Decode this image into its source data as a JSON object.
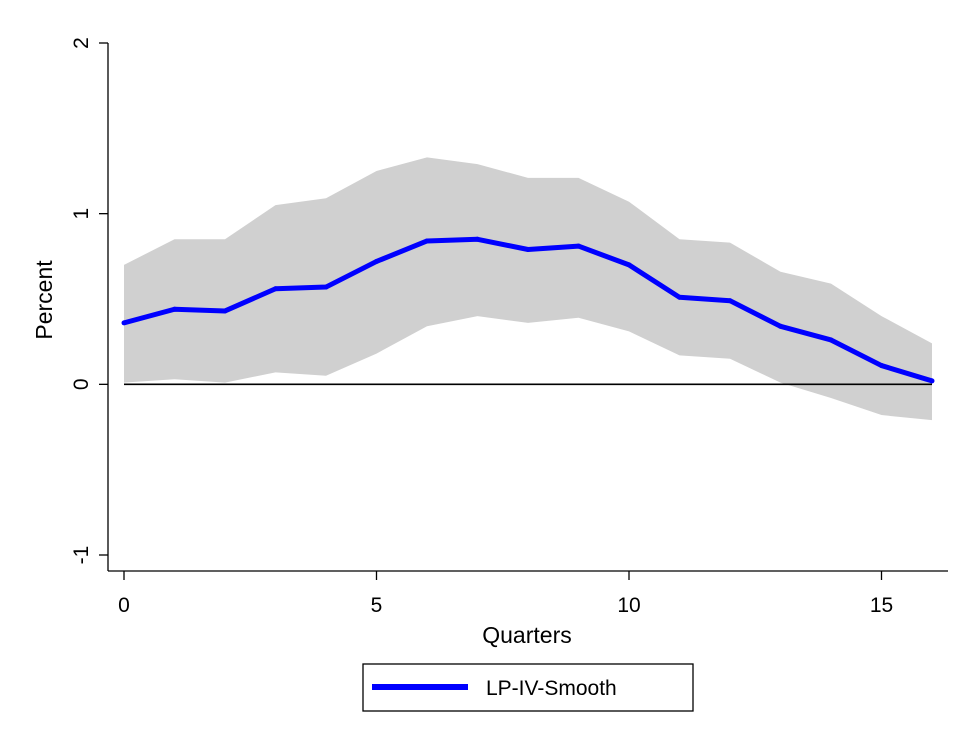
{
  "chart_data": {
    "type": "line",
    "title": "",
    "xlabel": "Quarters",
    "ylabel": "Percent",
    "xlim": [
      0,
      16
    ],
    "ylim": [
      -1,
      2
    ],
    "x_ticks": [
      0,
      5,
      10,
      15
    ],
    "y_ticks": [
      -1,
      0,
      1,
      2
    ],
    "x_tick_labels": [
      "0",
      "5",
      "10",
      "15"
    ],
    "y_tick_labels": [
      "-1",
      "0",
      "1",
      "2"
    ],
    "grid": false,
    "zero_line": 0,
    "legend": {
      "placement": "bottom-center",
      "entries": [
        "LP-IV-Smooth"
      ]
    },
    "x": [
      0,
      1,
      2,
      3,
      4,
      5,
      6,
      7,
      8,
      9,
      10,
      11,
      12,
      13,
      14,
      15,
      16
    ],
    "series": [
      {
        "name": "LP-IV-Smooth",
        "color": "#0000ff",
        "values": [
          0.36,
          0.44,
          0.43,
          0.56,
          0.57,
          0.72,
          0.84,
          0.85,
          0.79,
          0.81,
          0.7,
          0.51,
          0.49,
          0.34,
          0.26,
          0.11,
          0.02
        ]
      }
    ],
    "band": {
      "color": "#d0d0d0",
      "lower": [
        0.01,
        0.03,
        0.01,
        0.07,
        0.05,
        0.18,
        0.34,
        0.4,
        0.36,
        0.39,
        0.31,
        0.17,
        0.15,
        0.01,
        -0.08,
        -0.18,
        -0.21
      ],
      "upper": [
        0.7,
        0.85,
        0.85,
        1.05,
        1.09,
        1.25,
        1.33,
        1.29,
        1.21,
        1.21,
        1.07,
        0.85,
        0.83,
        0.66,
        0.59,
        0.4,
        0.24
      ]
    }
  }
}
